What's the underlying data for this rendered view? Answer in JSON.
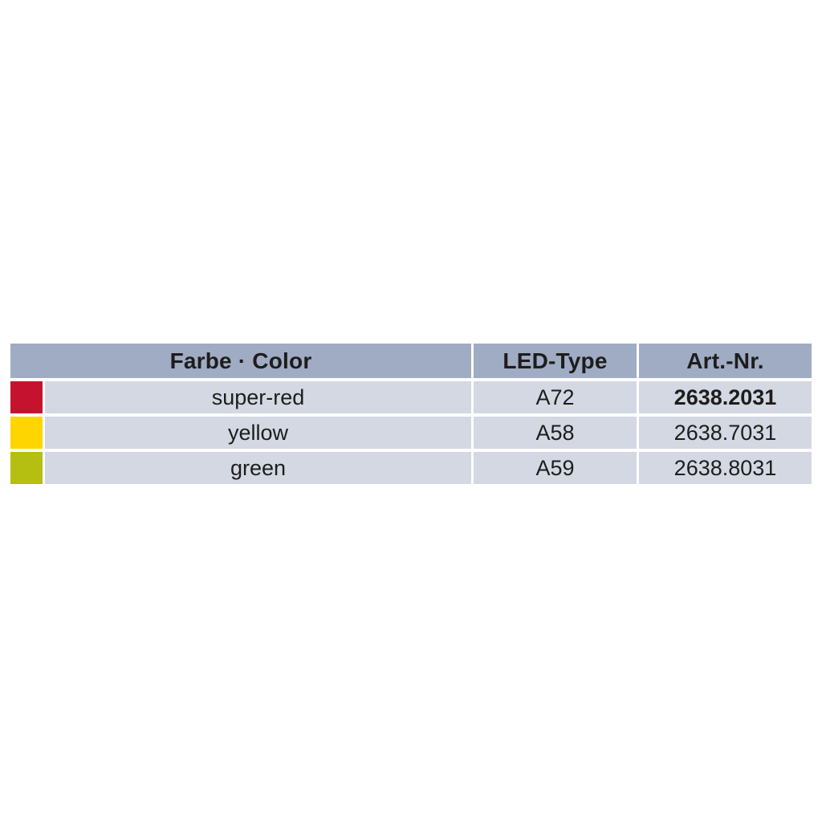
{
  "page": {
    "background": "#ffffff"
  },
  "table": {
    "colors": {
      "header_bg": "#a0abc4",
      "row_bg": "#d3d8e3",
      "text": "#1d1d1b"
    },
    "header": {
      "farbe_color": "Farbe · Color",
      "led_type": "LED-Type",
      "art_nr": "Art.-Nr."
    },
    "rows": [
      {
        "swatch_name": "super-red-swatch",
        "swatch_color": "#c5132f",
        "color_name": "super-red",
        "led_type": "A72",
        "art_nr": "2638.2031",
        "art_nr_bold": true
      },
      {
        "swatch_name": "yellow-swatch",
        "swatch_color": "#ffd500",
        "color_name": "yellow",
        "led_type": "A58",
        "art_nr": "2638.7031",
        "art_nr_bold": false
      },
      {
        "swatch_name": "green-swatch",
        "swatch_color": "#b4bf12",
        "color_name": "green",
        "led_type": "A59",
        "art_nr": "2638.8031",
        "art_nr_bold": false
      }
    ]
  }
}
